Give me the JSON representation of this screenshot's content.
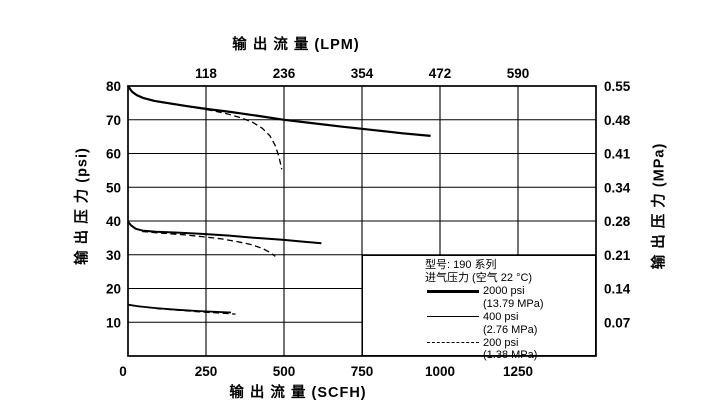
{
  "colors": {
    "ink": "#000000",
    "background": "#ffffff"
  },
  "axes": {
    "top": {
      "title": "输 出 流 量 (LPM)",
      "ticks": [
        {
          "label": "118",
          "scfh": 250
        },
        {
          "label": "236",
          "scfh": 500
        },
        {
          "label": "354",
          "scfh": 750
        },
        {
          "label": "472",
          "scfh": 1000
        },
        {
          "label": "590",
          "scfh": 1250
        }
      ]
    },
    "bottom": {
      "title": "输 出 流 量 (SCFH)",
      "ticks": [
        {
          "label": "0",
          "scfh": 0,
          "dx": -5
        },
        {
          "label": "250",
          "scfh": 250
        },
        {
          "label": "500",
          "scfh": 500
        },
        {
          "label": "750",
          "scfh": 750
        },
        {
          "label": "1000",
          "scfh": 1000
        },
        {
          "label": "1250",
          "scfh": 1250
        }
      ]
    },
    "left": {
      "title": "输 出 压 力 (psi)",
      "ticks": [
        {
          "label": "80",
          "psi": 80
        },
        {
          "label": "70",
          "psi": 70
        },
        {
          "label": "60",
          "psi": 60
        },
        {
          "label": "50",
          "psi": 50
        },
        {
          "label": "40",
          "psi": 40
        },
        {
          "label": "30",
          "psi": 30
        },
        {
          "label": "20",
          "psi": 20
        },
        {
          "label": "10",
          "psi": 10
        }
      ]
    },
    "right": {
      "title": "输 出 压 力 (MPa)",
      "ticks": [
        {
          "label": "0.55",
          "psi": 80
        },
        {
          "label": "0.48",
          "psi": 70
        },
        {
          "label": "0.41",
          "psi": 60
        },
        {
          "label": "0.34",
          "psi": 50
        },
        {
          "label": "0.28",
          "psi": 40
        },
        {
          "label": "0.21",
          "psi": 30
        },
        {
          "label": "0.14",
          "psi": 20
        },
        {
          "label": "0.07",
          "psi": 10
        }
      ]
    }
  },
  "legend": {
    "model_line": "型号: 190 系列",
    "condition_line": "进气压力 (空气 22 °C)",
    "entries": [
      {
        "pressure": "2000 psi",
        "mpa": "(13.79 MPa)",
        "line_style": "thick-solid"
      },
      {
        "pressure": "400 psi",
        "mpa": "(2.76 MPa)",
        "line_style": "thin-solid"
      },
      {
        "pressure": "200 psi",
        "mpa": "(1.38 MPa)",
        "line_style": "dashed"
      }
    ]
  },
  "chart_data": {
    "type": "line",
    "title": "",
    "xlabel_bottom": "输 出 流 量 (SCFH)",
    "xlabel_top": "输 出 流 量 (LPM)",
    "ylabel_left": "输 出 压 力 (psi)",
    "ylabel_right": "输 出 压 力 (MPa)",
    "x_range_scfh": [
      0,
      1500
    ],
    "y_range_psi": [
      0,
      80
    ],
    "x_gridlines_scfh": [
      250,
      500,
      750,
      1000,
      1250
    ],
    "y_gridlines_psi": [
      10,
      20,
      30,
      40,
      50,
      60,
      70
    ],
    "grid": true,
    "legend_position": "bottom-right-inside",
    "series": [
      {
        "group": "set_80psi",
        "supply": "2000 psi (13.79 MPa)",
        "style": "solid",
        "width": 2.2,
        "points_scfh_psi": [
          [
            0,
            80
          ],
          [
            12,
            78.4
          ],
          [
            28,
            77.3
          ],
          [
            50,
            76.4
          ],
          [
            85,
            75.6
          ],
          [
            130,
            74.9
          ],
          [
            185,
            74.1
          ],
          [
            250,
            73.2
          ],
          [
            330,
            72.3
          ],
          [
            420,
            71.1
          ],
          [
            500,
            70
          ],
          [
            590,
            69
          ],
          [
            690,
            67.9
          ],
          [
            790,
            66.9
          ],
          [
            880,
            66
          ],
          [
            970,
            65.2
          ]
        ]
      },
      {
        "group": "set_80psi",
        "supply": "200 psi (1.38 MPa)",
        "style": "dashed",
        "width": 1.3,
        "points_scfh_psi": [
          [
            15,
            77.9
          ],
          [
            45,
            76.5
          ],
          [
            90,
            75.4
          ],
          [
            150,
            74.5
          ],
          [
            215,
            73.6
          ],
          [
            270,
            72.7
          ],
          [
            320,
            71.7
          ],
          [
            365,
            70.5
          ],
          [
            400,
            69.2
          ],
          [
            430,
            67.5
          ],
          [
            455,
            65.2
          ],
          [
            472,
            62.3
          ],
          [
            484,
            59
          ],
          [
            493,
            55.3
          ]
        ]
      },
      {
        "group": "set_40psi",
        "supply": "400 psi (2.76 MPa)",
        "style": "solid",
        "width": 2.0,
        "points_scfh_psi": [
          [
            0,
            39.8
          ],
          [
            10,
            38.7
          ],
          [
            25,
            37.7
          ],
          [
            50,
            37.1
          ],
          [
            90,
            36.8
          ],
          [
            150,
            36.6
          ],
          [
            230,
            36.2
          ],
          [
            320,
            35.7
          ],
          [
            410,
            35
          ],
          [
            500,
            34.4
          ],
          [
            560,
            33.9
          ],
          [
            620,
            33.4
          ]
        ]
      },
      {
        "group": "set_40psi",
        "supply": "200 psi (1.38 MPa)",
        "style": "dashed",
        "width": 1.3,
        "points_scfh_psi": [
          [
            45,
            36.9
          ],
          [
            110,
            36.4
          ],
          [
            180,
            35.9
          ],
          [
            245,
            35.3
          ],
          [
            300,
            34.7
          ],
          [
            350,
            33.9
          ],
          [
            395,
            33
          ],
          [
            430,
            31.9
          ],
          [
            455,
            30.7
          ],
          [
            472,
            29.5
          ]
        ]
      },
      {
        "group": "set_15psi",
        "supply": "400 psi (2.76 MPa)",
        "style": "solid",
        "width": 1.8,
        "points_scfh_psi": [
          [
            0,
            15.2
          ],
          [
            35,
            14.7
          ],
          [
            90,
            14.2
          ],
          [
            160,
            13.7
          ],
          [
            230,
            13.3
          ],
          [
            330,
            12.9
          ]
        ]
      },
      {
        "group": "set_15psi",
        "supply": "200 psi (1.38 MPa)",
        "style": "dashed",
        "width": 1.3,
        "points_scfh_psi": [
          [
            30,
            14.8
          ],
          [
            100,
            14.0
          ],
          [
            170,
            13.5
          ],
          [
            240,
            13.0
          ],
          [
            300,
            12.7
          ],
          [
            345,
            12.4
          ]
        ]
      }
    ]
  }
}
